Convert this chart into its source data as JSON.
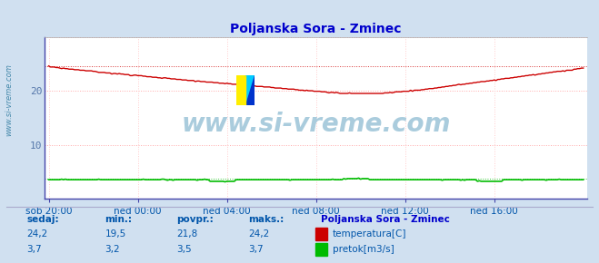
{
  "title": "Poljanska Sora - Zminec",
  "title_color": "#0000cc",
  "bg_color": "#d0e0f0",
  "plot_bg_color": "#ffffff",
  "grid_color_h": "#ffaaaa",
  "grid_color_v": "#ffcccc",
  "xlabel_color": "#0055aa",
  "ylabel_left_color": "#5577aa",
  "watermark": "www.si-vreme.com",
  "watermark_color": "#aaccdd",
  "x_tick_labels": [
    "sob 20:00",
    "ned 00:00",
    "ned 04:00",
    "ned 08:00",
    "ned 12:00",
    "ned 16:00"
  ],
  "x_tick_positions": [
    0,
    48,
    96,
    144,
    192,
    240
  ],
  "ylim": [
    0,
    30
  ],
  "temp_color": "#cc0000",
  "flow_color": "#00bb00",
  "n_points": 289,
  "legend_title": "Poljanska Sora - Zminec",
  "legend_title_color": "#0000cc",
  "legend_color": "#0055aa",
  "sedaj_label": "sedaj:",
  "min_label": "min.:",
  "povpr_label": "povpr.:",
  "maks_label": "maks.:",
  "temp_sedaj": "24,2",
  "temp_min_str": "19,5",
  "temp_povpr": "21,8",
  "temp_maks": "24,2",
  "flow_sedaj": "3,7",
  "flow_min_str": "3,2",
  "flow_povpr": "3,5",
  "flow_maks": "3,7",
  "temp_label": "temperatura[C]",
  "flow_label": "pretok[m3/s]",
  "sidebar_text": "www.si-vreme.com",
  "sidebar_color": "#4488aa",
  "axis_spine_color": "#4444aa",
  "temp_dotted_y": 24.5,
  "flow_dotted_y": 3.7,
  "logo_yellow": "#ffee00",
  "logo_cyan": "#00ccff",
  "logo_blue": "#0033cc"
}
